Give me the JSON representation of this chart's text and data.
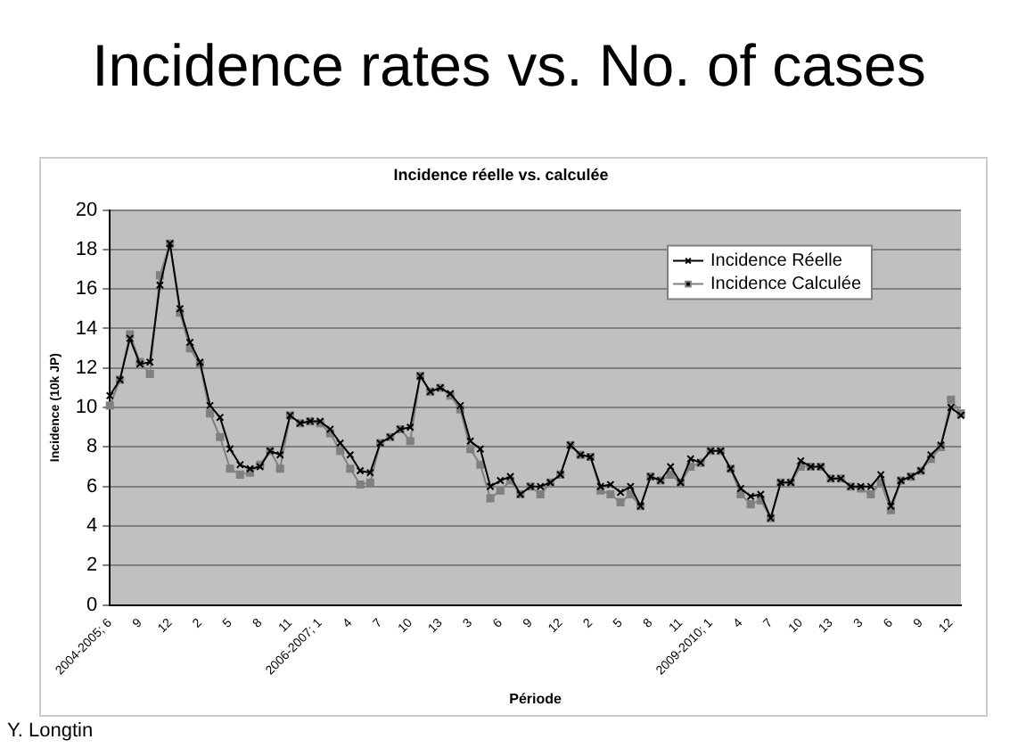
{
  "chart_data": {
    "type": "line",
    "title": "Incidence rates vs. No. of cases",
    "subtitle": "Incidence réelle vs. calculée",
    "xlabel": "Période",
    "ylabel": "Incidence (10k JP)",
    "annotations": [
      "Y. Longtin"
    ],
    "categories": [
      "2004-2005; 6",
      null,
      null,
      "9",
      null,
      null,
      "12",
      null,
      null,
      "2",
      null,
      null,
      "5",
      null,
      null,
      "8",
      null,
      null,
      "11",
      null,
      null,
      "2006-2007; 1",
      null,
      null,
      "4",
      null,
      null,
      "7",
      null,
      null,
      "10",
      null,
      null,
      "13",
      null,
      null,
      "3",
      null,
      null,
      "6",
      null,
      null,
      "9",
      null,
      null,
      "12",
      null,
      null,
      "2",
      null,
      null,
      "5",
      null,
      null,
      "8",
      null,
      null,
      "11",
      null,
      null,
      "2009-2010; 1",
      null,
      null,
      "4",
      null,
      null,
      "7",
      null,
      null,
      "10",
      null,
      null,
      "13",
      null,
      null,
      "3",
      null,
      null,
      "6",
      null,
      null,
      "9",
      null,
      null,
      "12",
      null
    ],
    "series": [
      {
        "name": "Incidence Réelle",
        "color": "#000000",
        "marker": "crossRot",
        "values": [
          10.6,
          11.4,
          13.5,
          12.2,
          12.3,
          16.2,
          18.3,
          15.0,
          13.3,
          12.3,
          10.1,
          9.5,
          7.9,
          7.1,
          6.9,
          7.0,
          7.8,
          7.6,
          9.6,
          9.2,
          9.3,
          9.3,
          8.9,
          8.2,
          7.6,
          6.8,
          6.7,
          8.2,
          8.5,
          8.9,
          9.0,
          11.6,
          10.8,
          11.0,
          10.7,
          10.1,
          8.3,
          7.9,
          6.0,
          6.3,
          6.5,
          5.6,
          6.0,
          6.0,
          6.2,
          6.6,
          8.1,
          7.6,
          7.5,
          6.0,
          6.1,
          5.7,
          6.0,
          5.0,
          6.5,
          6.3,
          7.0,
          6.2,
          7.4,
          7.2,
          7.8,
          7.8,
          6.9,
          5.9,
          5.5,
          5.6,
          4.4,
          6.2,
          6.2,
          7.3,
          7.0,
          7.0,
          6.4,
          6.4,
          6.0,
          6.0,
          6.0,
          6.6,
          5.0,
          6.3,
          6.5,
          6.8,
          7.6,
          8.1,
          10.0,
          9.6
        ]
      },
      {
        "name": "Incidence Calculée",
        "color": "#808080",
        "marker": "square",
        "values": [
          10.1,
          11.4,
          13.7,
          12.3,
          11.7,
          16.7,
          18.3,
          14.8,
          13.0,
          12.2,
          9.7,
          8.5,
          6.9,
          6.6,
          6.7,
          7.1,
          7.8,
          6.9,
          9.6,
          9.2,
          9.3,
          9.2,
          8.7,
          7.8,
          6.9,
          6.1,
          6.2,
          8.2,
          8.5,
          8.9,
          8.3,
          11.6,
          10.8,
          11.0,
          10.6,
          9.9,
          7.9,
          7.1,
          5.4,
          5.8,
          6.3,
          5.6,
          6.0,
          5.6,
          6.2,
          6.6,
          8.1,
          7.6,
          7.5,
          5.8,
          5.6,
          5.2,
          5.6,
          5.0,
          6.5,
          6.3,
          6.6,
          6.2,
          7.0,
          7.2,
          7.8,
          7.8,
          6.9,
          5.6,
          5.1,
          5.3,
          4.4,
          6.2,
          6.2,
          7.0,
          7.0,
          7.0,
          6.4,
          6.4,
          6.0,
          5.9,
          5.6,
          6.2,
          4.8,
          6.3,
          6.5,
          6.8,
          7.4,
          8.0,
          10.4,
          9.7
        ]
      }
    ],
    "ylim": [
      0,
      20
    ],
    "yticks": [
      0,
      2,
      4,
      6,
      8,
      10,
      12,
      14,
      16,
      18,
      20
    ],
    "grid": "y",
    "legend": "top right"
  }
}
